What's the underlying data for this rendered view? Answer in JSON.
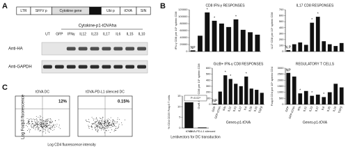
{
  "panel_a": {
    "letter": "A",
    "construct": [
      "LTR",
      "SFFV p",
      "Cytokine gene",
      "P1",
      "Ubi p",
      "tOVA",
      "SIN"
    ],
    "blot_title": "Cytokine-p1-tOVAha",
    "lanes": [
      "UT",
      "GFP",
      "IFNγ",
      "IL12",
      "IL23",
      "IL17",
      "IL6",
      "IL15",
      "IL10"
    ],
    "rows": [
      "Anti-HA",
      "Anti-GAPDH"
    ]
  },
  "panel_b": {
    "letter": "B"
  },
  "panel_c": {
    "letter": "C",
    "flow": [
      {
        "title": "tOVA DC",
        "percent": "12%"
      },
      {
        "title": "tOVA-PD-L1 silenced DC",
        "percent": "0.15%"
      }
    ],
    "ylabel": "Log Foxp3 fluorescence",
    "xlabel": "Log CD4 fluorescence intensity"
  },
  "chart_data": [
    {
      "type": "bar",
      "title": "CD8 IFN-γ RESPONSES",
      "ylabel": "IFN-γ CD8 per 10⁵ spleen CD8",
      "categories": [
        "GFP",
        "GFP-tOVA",
        "IFN",
        "IL12",
        "IL23",
        "IL17",
        "IL6",
        "IL15",
        "IL10",
        "TGFβ"
      ],
      "values": [
        3000,
        45000,
        112000,
        88000,
        80000,
        70000,
        92000,
        62000,
        55000,
        48000
      ],
      "ylim": [
        0,
        120000
      ],
      "yticks": [
        0,
        20000,
        40000,
        60000,
        80000,
        100000,
        120000
      ],
      "color": "#111111",
      "annotations": [
        {
          "text": "NP",
          "x": "GFP"
        },
        {
          "text": "*",
          "x": "IFN"
        },
        {
          "text": "*",
          "x": "IL12"
        },
        {
          "text": "*",
          "x": "IL6"
        }
      ]
    },
    {
      "type": "bar",
      "title": "IL17 CD8 RESPONSES",
      "ylabel": "IL17 CD8 per 10⁵ spleen CD8",
      "categories": [
        "GFP",
        "GFP-tOVA",
        "IFN",
        "IL12",
        "IL23",
        "IL17",
        "IL6",
        "IL15",
        "IL10",
        "TGFβ"
      ],
      "values": [
        20,
        120,
        150,
        110,
        480,
        580,
        170,
        120,
        90,
        140
      ],
      "ylim": [
        0,
        700
      ],
      "yticks": [
        0,
        100,
        200,
        300,
        400,
        500,
        600,
        700
      ],
      "color": "#111111",
      "annotations": [
        {
          "text": "N.P.",
          "x": "GFP"
        },
        {
          "text": "*",
          "x": "IL23"
        },
        {
          "text": "*",
          "x": "IL17"
        }
      ]
    },
    {
      "type": "bar",
      "title": "GrzB+ IFN-γ CD8 RESPONSES",
      "ylabel": "GrzB IFN-γ CD8 per 10⁵ spleen CD8",
      "xlabel": "Genes-p1-tOVA",
      "categories": [
        "GFP",
        "GFP-tOVA",
        "IFN",
        "IL12",
        "IL23",
        "IL17",
        "IL6",
        "IL15",
        "IL10",
        "TGFβ"
      ],
      "values": [
        10,
        210,
        480,
        420,
        340,
        300,
        460,
        260,
        240,
        190
      ],
      "ylim": [
        0,
        600
      ],
      "yticks": [
        0,
        100,
        200,
        300,
        400,
        500,
        600
      ],
      "color": "#111111",
      "annotations": [
        {
          "text": "NP",
          "x": "GFP"
        },
        {
          "text": "*",
          "x": "IFN"
        },
        {
          "text": "*",
          "x": "IL12"
        },
        {
          "text": "*",
          "x": "IL6"
        }
      ]
    },
    {
      "type": "bar",
      "title": "REGULATORY T CELLS",
      "ylabel": "Foxp3 CD4 per 10⁵ spleen CD4",
      "xlabel": "Genes-p1-tOVA",
      "categories": [
        "GFP",
        "GFP-tOVA",
        "IFN",
        "IL12",
        "IL23",
        "IL17",
        "IL6",
        "IL15",
        "IL10",
        "TGFβ"
      ],
      "values": [
        2600,
        2300,
        900,
        1100,
        700,
        800,
        600,
        1000,
        1700,
        1400
      ],
      "ylim": [
        0,
        3000
      ],
      "yticks": [
        0,
        500,
        1000,
        1500,
        2000,
        2500,
        3000
      ],
      "color": "#111111",
      "annotations": [
        {
          "text": "NP",
          "x": "GFP"
        },
        {
          "text": "*",
          "x": "IFN"
        },
        {
          "text": "*",
          "x": "IL23"
        },
        {
          "text": "*",
          "x": "IL6"
        }
      ]
    },
    {
      "type": "bar",
      "ylabel": "% CD4 CD25 Foxp3 T cells",
      "xlabel": "Lentivectors for DC transduction",
      "categories": [
        "tOVA",
        "tOVA-PD-L1 silenced"
      ],
      "values": [
        12,
        0.2
      ],
      "ylim": [
        0,
        15
      ],
      "yticks": [
        0,
        5,
        10,
        15
      ],
      "color": "#111111",
      "annotations": [
        {
          "text": "P=0.02*"
        }
      ]
    }
  ]
}
